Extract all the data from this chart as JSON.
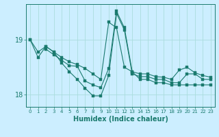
{
  "title": "",
  "xlabel": "Humidex (Indice chaleur)",
  "background_color": "#cceeff",
  "grid_color": "#aadddd",
  "line_color": "#1a7a6e",
  "xlim": [
    -0.5,
    23.5
  ],
  "ylim": [
    17.78,
    19.65
  ],
  "yticks": [
    18,
    19
  ],
  "xticks": [
    0,
    1,
    2,
    3,
    4,
    5,
    6,
    7,
    8,
    9,
    10,
    11,
    12,
    13,
    14,
    15,
    16,
    17,
    18,
    19,
    20,
    21,
    22,
    23
  ],
  "line1_x": [
    0,
    1,
    2,
    3,
    4,
    5,
    6,
    7,
    8,
    9,
    10,
    11,
    12,
    13,
    14,
    15,
    16,
    17,
    18,
    19,
    20,
    21,
    22,
    23
  ],
  "line1_y": [
    19.0,
    18.78,
    18.88,
    18.78,
    18.68,
    18.6,
    18.55,
    18.48,
    18.38,
    18.28,
    19.32,
    19.22,
    18.5,
    18.42,
    18.38,
    18.38,
    18.33,
    18.32,
    18.28,
    18.45,
    18.5,
    18.4,
    18.35,
    18.32
  ],
  "line2_x": [
    0,
    1,
    2,
    3,
    4,
    5,
    6,
    7,
    8,
    9,
    10,
    11,
    12,
    13,
    14,
    15,
    16,
    17,
    18,
    19,
    20,
    21,
    22,
    23
  ],
  "line2_y": [
    19.0,
    18.68,
    18.88,
    18.78,
    18.58,
    18.42,
    18.28,
    18.12,
    17.98,
    17.98,
    18.35,
    19.48,
    19.18,
    18.38,
    18.33,
    18.33,
    18.28,
    18.28,
    18.22,
    18.22,
    18.38,
    18.38,
    18.28,
    18.28
  ],
  "line3_x": [
    2,
    3,
    4,
    5,
    6,
    7,
    8,
    9,
    10,
    11,
    12,
    13,
    14,
    15,
    16,
    17,
    18,
    19,
    20,
    21,
    22,
    23
  ],
  "line3_y": [
    18.83,
    18.73,
    18.63,
    18.53,
    18.52,
    18.25,
    18.18,
    18.13,
    18.48,
    19.52,
    19.22,
    18.42,
    18.28,
    18.28,
    18.22,
    18.22,
    18.18,
    18.18,
    18.18,
    18.18,
    18.18,
    18.18
  ]
}
